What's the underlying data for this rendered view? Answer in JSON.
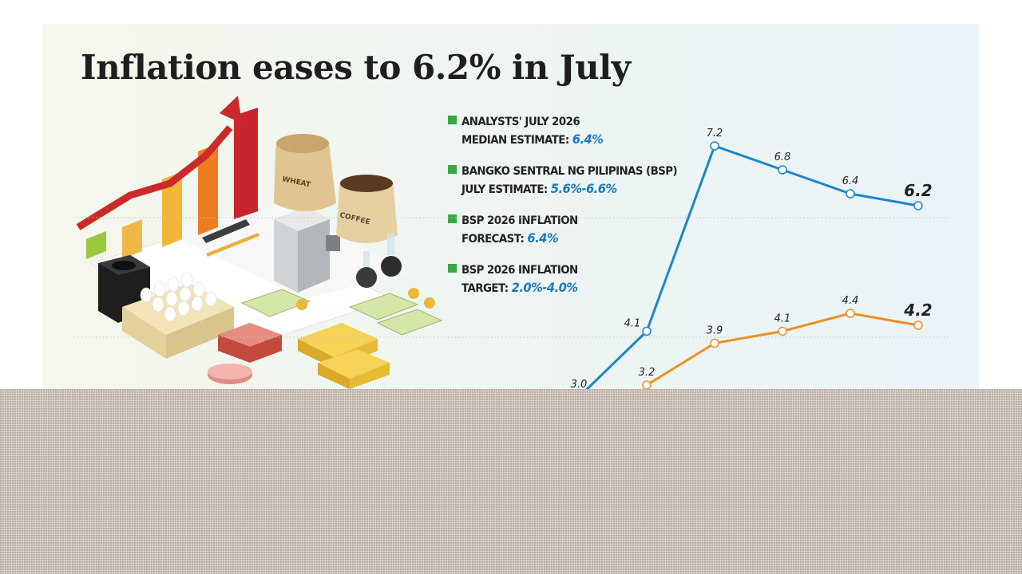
{
  "title": "Inflation eases to 6.2% in July",
  "legend": [
    {
      "text": "ANALYSTS' JULY 2026",
      "text2": "MEDIAN ESTIMATE:",
      "value": "6.4%"
    },
    {
      "text": "BANGKO SENTRAL NG PILIPINAS (BSP)",
      "text2": "JULY ESTIMATE:",
      "value": "5.6%-6.6%"
    },
    {
      "text": "BSP 2026 INFLATION",
      "text2": "FORECAST:",
      "value": "6.4%"
    },
    {
      "text": "BSP 2026 INFLATION",
      "text2": "TARGET:",
      "value": "2.0%-4.0%"
    }
  ],
  "illustration_labels": {
    "wheat": "WHEAT",
    "coffee": "COFFEE"
  },
  "chart_data": {
    "type": "line",
    "title": "Inflation eases to 6.2% in July",
    "y_range": [
      2.5,
      7.6
    ],
    "grid": "horizontal dotted",
    "series": [
      {
        "color": "#1a86c9",
        "values": [
          3.0,
          4.1,
          7.2,
          6.8,
          6.4,
          6.2
        ],
        "labels": [
          "3.0",
          "4.1",
          "7.2",
          "6.8",
          "6.4",
          "6.2"
        ]
      },
      {
        "color": "#ee8f22",
        "values": [
          3.2,
          3.9,
          4.1,
          4.4,
          4.2
        ],
        "labels": [
          "3.2",
          "3.9",
          "4.1",
          "4.4",
          "4.2"
        ]
      }
    ]
  },
  "colors": {
    "accent_blue": "#1a78c2",
    "accent_green": "#3aa845",
    "line_blue": "#1a86c9",
    "line_orange": "#ee8f22"
  }
}
